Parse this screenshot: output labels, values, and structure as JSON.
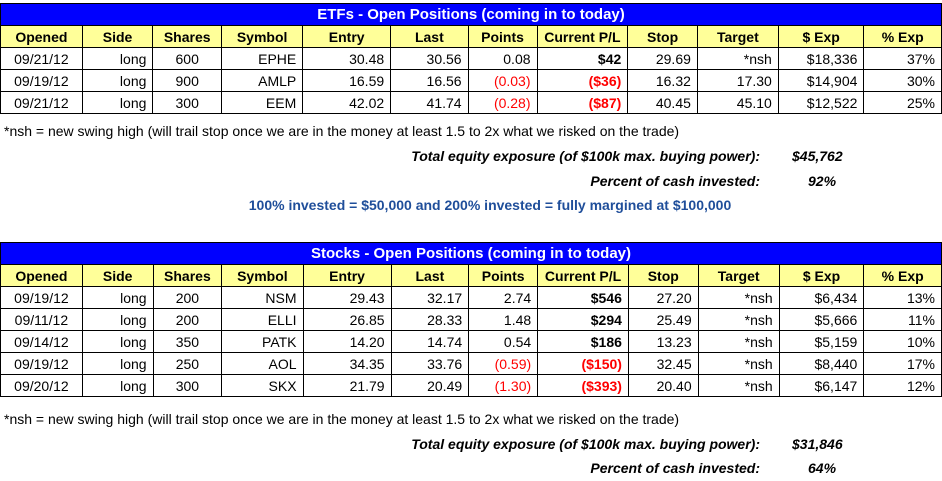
{
  "etf": {
    "title": "ETFs - Open Positions (coming in to today)",
    "headers": [
      "Opened",
      "Side",
      "Shares",
      "Symbol",
      "Entry",
      "Last",
      "Points",
      "Current P/L",
      "Stop",
      "Target",
      "$ Exp",
      "% Exp"
    ],
    "rows": [
      {
        "opened": "09/21/12",
        "side": "long",
        "shares": "600",
        "symbol": "EPHE",
        "entry": "30.48",
        "last": "30.56",
        "points": "0.08",
        "pl": "$42",
        "stop": "29.69",
        "target": "*nsh",
        "exp": "$18,336",
        "pexp": "37%",
        "neg": false
      },
      {
        "opened": "09/19/12",
        "side": "long",
        "shares": "900",
        "symbol": "AMLP",
        "entry": "16.59",
        "last": "16.56",
        "points": "(0.03)",
        "pl": "($36)",
        "stop": "16.32",
        "target": "17.30",
        "exp": "$14,904",
        "pexp": "30%",
        "neg": true
      },
      {
        "opened": "09/21/12",
        "side": "long",
        "shares": "300",
        "symbol": "EEM",
        "entry": "42.02",
        "last": "41.74",
        "points": "(0.28)",
        "pl": "($87)",
        "stop": "40.45",
        "target": "45.10",
        "exp": "$12,522",
        "pexp": "25%",
        "neg": true
      }
    ],
    "note": "*nsh = new swing high (will trail stop once we are in the money at least 1.5 to 2x what we risked on the trade)",
    "exposure_label": "Total equity exposure (of $100k max. buying power):",
    "exposure_value": "$45,762",
    "cash_label": "Percent of cash invested:",
    "cash_value": "92%",
    "invest_note": "100% invested = $50,000 and 200% invested = fully margined at $100,000"
  },
  "stocks": {
    "title": "Stocks - Open Positions (coming in to today)",
    "headers": [
      "Opened",
      "Side",
      "Shares",
      "Symbol",
      "Entry",
      "Last",
      "Points",
      "Current P/L",
      "Stop",
      "Target",
      "$ Exp",
      "% Exp"
    ],
    "rows": [
      {
        "opened": "09/19/12",
        "side": "long",
        "shares": "200",
        "symbol": "NSM",
        "entry": "29.43",
        "last": "32.17",
        "points": "2.74",
        "pl": "$546",
        "stop": "27.20",
        "target": "*nsh",
        "exp": "$6,434",
        "pexp": "13%",
        "neg": false
      },
      {
        "opened": "09/11/12",
        "side": "long",
        "shares": "200",
        "symbol": "ELLI",
        "entry": "26.85",
        "last": "28.33",
        "points": "1.48",
        "pl": "$294",
        "stop": "25.49",
        "target": "*nsh",
        "exp": "$5,666",
        "pexp": "11%",
        "neg": false
      },
      {
        "opened": "09/14/12",
        "side": "long",
        "shares": "350",
        "symbol": "PATK",
        "entry": "14.20",
        "last": "14.74",
        "points": "0.54",
        "pl": "$186",
        "stop": "13.23",
        "target": "*nsh",
        "exp": "$5,159",
        "pexp": "10%",
        "neg": false
      },
      {
        "opened": "09/19/12",
        "side": "long",
        "shares": "250",
        "symbol": "AOL",
        "entry": "34.35",
        "last": "33.76",
        "points": "(0.59)",
        "pl": "($150)",
        "stop": "32.45",
        "target": "*nsh",
        "exp": "$8,440",
        "pexp": "17%",
        "neg": true
      },
      {
        "opened": "09/20/12",
        "side": "long",
        "shares": "300",
        "symbol": "SKX",
        "entry": "21.79",
        "last": "20.49",
        "points": "(1.30)",
        "pl": "($393)",
        "stop": "20.40",
        "target": "*nsh",
        "exp": "$6,147",
        "pexp": "12%",
        "neg": true
      }
    ],
    "note": "*nsh = new swing high (will trail stop once we are in the money at least 1.5 to 2x what we risked on the trade)",
    "exposure_label": "Total equity exposure (of $100k max. buying power):",
    "exposure_value": "$31,846",
    "cash_label": "Percent of cash invested:",
    "cash_value": "64%"
  }
}
